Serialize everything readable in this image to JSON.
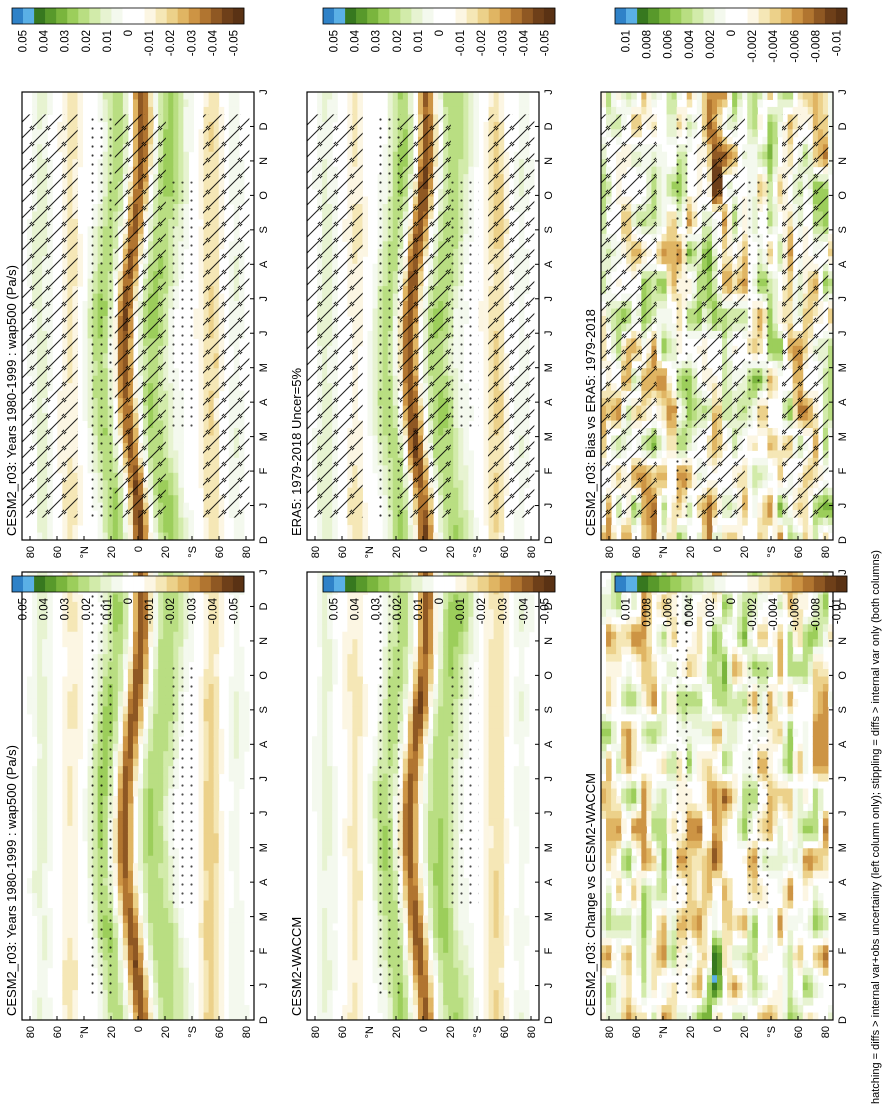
{
  "footer": "hatching = diffs > internal var+obs uncertainty (left column only); stippling = diffs > internal var only (both columns)",
  "colors": {
    "positive": [
      "#f4f9ee",
      "#e7f3d1",
      "#d2ebaa",
      "#b9de82",
      "#9cce5b",
      "#7ab53d",
      "#58992b",
      "#37781f",
      "#5ab0e6",
      "#2f82c8"
    ],
    "negative": [
      "#fcf6e3",
      "#f5e7b6",
      "#ecd18a",
      "#e0b563",
      "#cd9444",
      "#b17530",
      "#8f5823",
      "#6e3f19"
    ],
    "zero": "#ffffff"
  },
  "chart_data": [
    {
      "type": "heatmap",
      "id": "left-top",
      "title": "CESM2_r03: Years 1980-1999 : wap500 (Pa/s)",
      "x_ticks": [
        "D",
        "J",
        "F",
        "M",
        "A",
        "M",
        "J",
        "J",
        "A",
        "S",
        "O",
        "N",
        "D",
        "J"
      ],
      "y_ticks": [
        "80",
        "60",
        "°N",
        "20",
        "0",
        "20",
        "°S",
        "60",
        "80"
      ],
      "y_range": [
        90,
        -90
      ],
      "colorbar": [
        "0.05",
        "0.04",
        "0.03",
        "0.02",
        "0.01",
        "0",
        "-0.01",
        "-0.02",
        "-0.03",
        "-0.04",
        "-0.05"
      ],
      "hatching": true,
      "stippling": true
    },
    {
      "type": "heatmap",
      "id": "left-middle",
      "title": "ERA5: 1979-2018 Uncer=5%",
      "x_ticks": [
        "D",
        "J",
        "F",
        "M",
        "A",
        "M",
        "J",
        "J",
        "A",
        "S",
        "O",
        "N",
        "D",
        "J"
      ],
      "y_ticks": [
        "80",
        "60",
        "°N",
        "20",
        "0",
        "20",
        "°S",
        "60",
        "80"
      ],
      "y_range": [
        90,
        -90
      ],
      "colorbar": [
        "0.05",
        "0.04",
        "0.03",
        "0.02",
        "0.01",
        "0",
        "-0.01",
        "-0.02",
        "-0.03",
        "-0.04",
        "-0.05"
      ],
      "hatching": true,
      "stippling": true
    },
    {
      "type": "heatmap",
      "id": "left-bottom",
      "title": "CESM2_r03: Bias vs ERA5: 1979-2018",
      "x_ticks": [
        "D",
        "J",
        "F",
        "M",
        "A",
        "M",
        "J",
        "J",
        "A",
        "S",
        "O",
        "N",
        "D",
        "J"
      ],
      "y_ticks": [
        "80",
        "60",
        "°N",
        "20",
        "0",
        "20",
        "°S",
        "60",
        "80"
      ],
      "y_range": [
        90,
        -90
      ],
      "colorbar": [
        "0.01",
        "0.008",
        "0.006",
        "0.004",
        "0.002",
        "0",
        "-0.002",
        "-0.004",
        "-0.006",
        "-0.008",
        "-0.01"
      ],
      "hatching": true,
      "stippling": true
    },
    {
      "type": "heatmap",
      "id": "right-top",
      "title": "CESM2_r03: Years 1980-1999 : wap500 (Pa/s)",
      "x_ticks": [
        "D",
        "J",
        "F",
        "M",
        "A",
        "M",
        "J",
        "J",
        "A",
        "S",
        "O",
        "N",
        "D",
        "J"
      ],
      "y_ticks": [
        "80",
        "60",
        "°N",
        "20",
        "0",
        "20",
        "°S",
        "60",
        "80"
      ],
      "y_range": [
        90,
        -90
      ],
      "colorbar": [
        "0.05",
        "0.04",
        "0.03",
        "0.02",
        "0.01",
        "0",
        "-0.01",
        "-0.02",
        "-0.03",
        "-0.04",
        "-0.05"
      ],
      "hatching": false,
      "stippling": true
    },
    {
      "type": "heatmap",
      "id": "right-middle",
      "title": "CESM2-WACCM",
      "x_ticks": [
        "D",
        "J",
        "F",
        "M",
        "A",
        "M",
        "J",
        "J",
        "A",
        "S",
        "O",
        "N",
        "D",
        "J"
      ],
      "y_ticks": [
        "80",
        "60",
        "°N",
        "20",
        "0",
        "20",
        "°S",
        "60",
        "80"
      ],
      "y_range": [
        90,
        -90
      ],
      "colorbar": [
        "0.05",
        "0.04",
        "0.03",
        "0.02",
        "0.01",
        "0",
        "-0.01",
        "-0.02",
        "-0.03",
        "-0.04",
        "-0.05"
      ],
      "hatching": false,
      "stippling": true
    },
    {
      "type": "heatmap",
      "id": "right-bottom",
      "title": "CESM2_r03: Change vs CESM2-WACCM",
      "x_ticks": [
        "D",
        "J",
        "F",
        "M",
        "A",
        "M",
        "J",
        "J",
        "A",
        "S",
        "O",
        "N",
        "D",
        "J"
      ],
      "y_ticks": [
        "80",
        "60",
        "°N",
        "20",
        "0",
        "20",
        "°S",
        "60",
        "80"
      ],
      "y_range": [
        90,
        -90
      ],
      "colorbar": [
        "0.01",
        "0.008",
        "0.006",
        "0.004",
        "0.002",
        "0",
        "-0.002",
        "-0.004",
        "-0.006",
        "-0.008",
        "-0.01"
      ],
      "hatching": false,
      "stippling": true
    }
  ]
}
